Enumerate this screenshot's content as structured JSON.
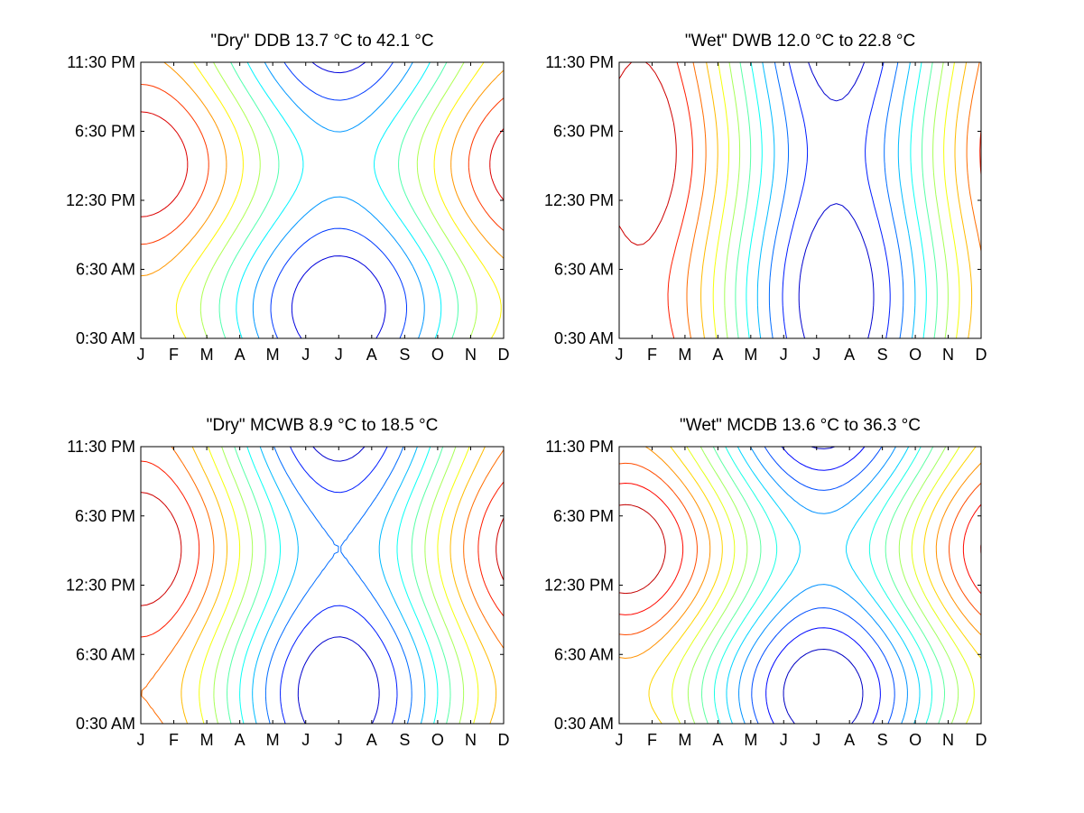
{
  "chart_data": [
    {
      "type": "contour",
      "title": "\"Dry\" DDB  13.7 °C to  42.1 °C",
      "x_ticks": [
        "J",
        "F",
        "M",
        "A",
        "M",
        "J",
        "J",
        "A",
        "S",
        "O",
        "N",
        "D"
      ],
      "y_ticks": [
        "0:30 AM",
        "6:30 AM",
        "12:30 PM",
        "6:30 PM",
        "11:30 PM"
      ],
      "range": [
        13.7,
        42.1
      ],
      "levels": 10,
      "colormap": "jet",
      "grid": false,
      "model": {
        "kind": "cosine",
        "season_phase": 6.0,
        "diurnal_peak": 15.0,
        "season_amp": 1.0,
        "diurnal_amp": 0.45
      }
    },
    {
      "type": "contour",
      "title": "\"Wet\" DWB  12.0 °C to  22.8 °C",
      "x_ticks": [
        "J",
        "F",
        "M",
        "A",
        "M",
        "J",
        "J",
        "A",
        "S",
        "O",
        "N",
        "D"
      ],
      "y_ticks": [
        "0:30 AM",
        "6:30 AM",
        "12:30 PM",
        "6:30 PM",
        "11:30 PM"
      ],
      "range": [
        12.0,
        22.8
      ],
      "levels": 12,
      "colormap": "jet",
      "grid": false,
      "model": {
        "kind": "cosine",
        "season_phase": 6.6,
        "diurnal_peak": 16.0,
        "season_amp": 1.0,
        "diurnal_amp": 0.12
      }
    },
    {
      "type": "contour",
      "title": "\"Dry\" MCWB   8.9 °C to  18.5 °C",
      "x_ticks": [
        "J",
        "F",
        "M",
        "A",
        "M",
        "J",
        "J",
        "A",
        "S",
        "O",
        "N",
        "D"
      ],
      "y_ticks": [
        "0:30 AM",
        "6:30 AM",
        "12:30 PM",
        "6:30 PM",
        "11:30 PM"
      ],
      "range": [
        8.9,
        18.5
      ],
      "levels": 12,
      "colormap": "jet",
      "grid": false,
      "model": {
        "kind": "cosine",
        "season_phase": 6.0,
        "diurnal_peak": 15.0,
        "season_amp": 1.0,
        "diurnal_amp": 0.3
      }
    },
    {
      "type": "contour",
      "title": "\"Wet\" MCDB  13.6 °C to  36.3 °C",
      "x_ticks": [
        "J",
        "F",
        "M",
        "A",
        "M",
        "J",
        "J",
        "A",
        "S",
        "O",
        "N",
        "D"
      ],
      "y_ticks": [
        "0:30 AM",
        "6:30 AM",
        "12:30 PM",
        "6:30 PM",
        "11:30 PM"
      ],
      "range": [
        13.6,
        36.3
      ],
      "levels": 14,
      "colormap": "jet",
      "grid": false,
      "model": {
        "kind": "cosine",
        "season_phase": 6.2,
        "diurnal_peak": 15.0,
        "season_amp": 1.0,
        "diurnal_amp": 0.45
      }
    }
  ]
}
